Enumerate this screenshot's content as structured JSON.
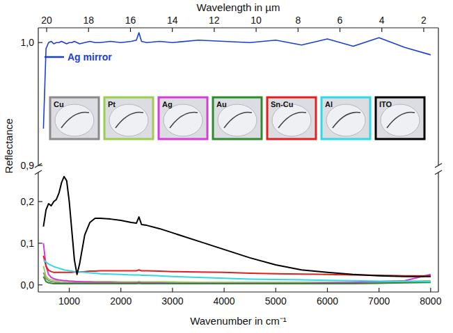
{
  "chart_data": {
    "type": "line",
    "x_label": "Wavenumber in cm⁻¹",
    "x2_label": "Wavelength in µm",
    "y_label": "Reflectance",
    "xlim": [
      400,
      8150
    ],
    "xticks": [
      1000,
      2000,
      3000,
      4000,
      5000,
      6000,
      7000,
      8000
    ],
    "x2lim": [
      20.4,
      1.3
    ],
    "x2ticks": [
      20,
      18,
      16,
      14,
      12,
      10,
      8,
      6,
      4,
      2
    ],
    "ylim": [
      -0.017,
      0.27
    ],
    "yticks": [
      {
        "value": 0,
        "label": "0,0"
      },
      {
        "value": 0.1,
        "label": "0,1"
      },
      {
        "value": 0.2,
        "label": "0,2"
      }
    ],
    "y2lim": [
      0.9,
      1.012
    ],
    "y2ticks": [
      {
        "value": 0.9,
        "label": "0,9"
      },
      {
        "value": 1.0,
        "label": "1,0"
      }
    ],
    "legend": "upper left",
    "x": [
      500,
      550,
      600,
      650,
      700,
      750,
      800,
      850,
      900,
      950,
      1000,
      1050,
      1100,
      1150,
      1200,
      1300,
      1400,
      1500,
      1600,
      1800,
      2000,
      2200,
      2300,
      2350,
      2400,
      2500,
      2750,
      3000,
      3500,
      4000,
      4500,
      5000,
      5500,
      6000,
      6500,
      7000,
      7500,
      8000
    ],
    "series": [
      {
        "name": "Ag mirror",
        "color": "#1a3fd6",
        "axis": "y2",
        "values": [
          0.93,
          0.995,
          1.0,
          1.001,
          0.999,
          1.0,
          1.0,
          1.001,
          1.0,
          0.999,
          1.0,
          1.0,
          1.001,
          1.0,
          0.999,
          1.0,
          1.001,
          1.0,
          1.0,
          1.001,
          1.0,
          1.001,
          1.002,
          1.008,
          1.001,
          1.0,
          1.001,
          1.0,
          1.002,
          1.001,
          1.0,
          1.002,
          0.998,
          1.003,
          0.997,
          1.004,
          0.996,
          0.99
        ]
      },
      {
        "name": "Cu",
        "color": "#8a8a8a",
        "values": [
          0.03,
          0.015,
          0.01,
          0.008,
          0.007,
          0.006,
          0.006,
          0.005,
          0.005,
          0.005,
          0.005,
          0.005,
          0.005,
          0.005,
          0.005,
          0.005,
          0.005,
          0.005,
          0.005,
          0.005,
          0.005,
          0.005,
          0.005,
          0.006,
          0.005,
          0.005,
          0.005,
          0.005,
          0.005,
          0.005,
          0.005,
          0.005,
          0.005,
          0.005,
          0.005,
          0.006,
          0.006,
          0.008
        ]
      },
      {
        "name": "Pt",
        "color": "#9acd52",
        "values": [
          0.045,
          0.02,
          0.014,
          0.012,
          0.011,
          0.01,
          0.01,
          0.01,
          0.009,
          0.009,
          0.009,
          0.009,
          0.009,
          0.008,
          0.008,
          0.008,
          0.008,
          0.008,
          0.008,
          0.008,
          0.007,
          0.007,
          0.007,
          0.008,
          0.007,
          0.007,
          0.007,
          0.007,
          0.006,
          0.006,
          0.006,
          0.006,
          0.006,
          0.006,
          0.006,
          0.007,
          0.008,
          0.01
        ]
      },
      {
        "name": "Ag",
        "color": "#d63cd6",
        "values": [
          0.1,
          0.045,
          0.025,
          0.018,
          0.015,
          0.013,
          0.012,
          0.011,
          0.01,
          0.01,
          0.009,
          0.009,
          0.008,
          0.008,
          0.008,
          0.007,
          0.007,
          0.006,
          0.006,
          0.006,
          0.005,
          0.005,
          0.005,
          0.006,
          0.005,
          0.005,
          0.005,
          0.004,
          0.004,
          0.004,
          0.004,
          0.004,
          0.004,
          0.005,
          0.006,
          0.008,
          0.01,
          0.025
        ]
      },
      {
        "name": "Au",
        "color": "#2d8a2d",
        "values": [
          0.02,
          0.008,
          0.005,
          0.004,
          0.003,
          0.003,
          0.003,
          0.003,
          0.003,
          0.003,
          0.003,
          0.003,
          0.003,
          0.003,
          0.003,
          0.003,
          0.003,
          0.003,
          0.003,
          0.003,
          0.003,
          0.003,
          0.003,
          0.004,
          0.003,
          0.003,
          0.003,
          0.003,
          0.003,
          0.003,
          0.003,
          0.003,
          0.003,
          0.003,
          0.003,
          0.004,
          0.005,
          0.006
        ]
      },
      {
        "name": "Sn-Cu",
        "color": "#e02020",
        "values": [
          0.07,
          0.045,
          0.035,
          0.032,
          0.03,
          0.03,
          0.03,
          0.03,
          0.03,
          0.03,
          0.03,
          0.03,
          0.031,
          0.031,
          0.031,
          0.032,
          0.033,
          0.033,
          0.034,
          0.034,
          0.034,
          0.034,
          0.034,
          0.036,
          0.034,
          0.034,
          0.033,
          0.032,
          0.031,
          0.03,
          0.028,
          0.027,
          0.026,
          0.025,
          0.024,
          0.023,
          0.022,
          0.022
        ]
      },
      {
        "name": "Al",
        "color": "#2fd9e6",
        "values": [
          0.06,
          0.055,
          0.05,
          0.047,
          0.044,
          0.042,
          0.04,
          0.038,
          0.036,
          0.035,
          0.034,
          0.033,
          0.032,
          0.032,
          0.031,
          0.03,
          0.029,
          0.028,
          0.027,
          0.026,
          0.025,
          0.024,
          0.024,
          0.024,
          0.023,
          0.023,
          0.022,
          0.02,
          0.018,
          0.016,
          0.014,
          0.013,
          0.012,
          0.011,
          0.01,
          0.009,
          0.009,
          0.008
        ]
      },
      {
        "name": "ITO",
        "color": "#000000",
        "values": [
          0.14,
          0.18,
          0.195,
          0.19,
          0.2,
          0.205,
          0.22,
          0.245,
          0.26,
          0.25,
          0.2,
          0.13,
          0.06,
          0.025,
          0.05,
          0.12,
          0.15,
          0.16,
          0.16,
          0.158,
          0.155,
          0.15,
          0.148,
          0.163,
          0.145,
          0.143,
          0.135,
          0.125,
          0.105,
          0.085,
          0.065,
          0.048,
          0.036,
          0.03,
          0.025,
          0.022,
          0.02,
          0.02
        ]
      }
    ]
  }
}
